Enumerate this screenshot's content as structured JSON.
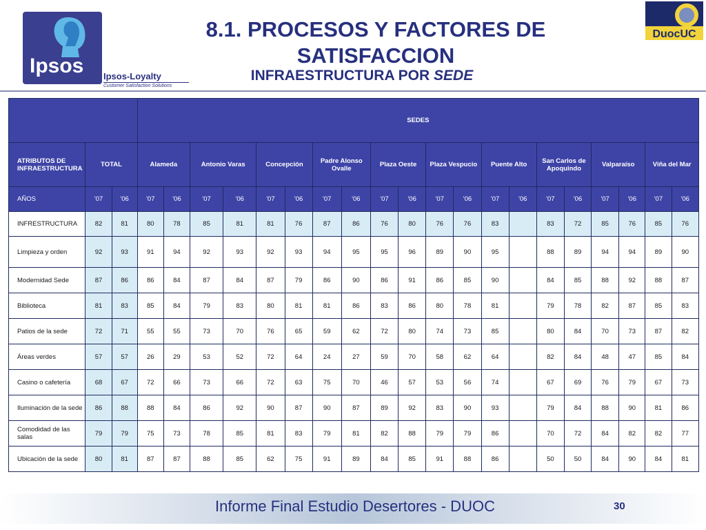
{
  "logo": {
    "word": "Ipsos",
    "loyalty": "Ipsos-Loyalty",
    "tagline": "Customer Satisfaction Solutions",
    "duoc": "DuocUC"
  },
  "title_line1": "8.1. PROCESOS Y FACTORES DE",
  "title_line2": "SATISFACCION",
  "subtitle_main": "INFRAESTRUCTURA POR ",
  "subtitle_italic": "SEDE",
  "table": {
    "sedes_label": "SEDES",
    "attr_header": "ATRIBUTOS DE INFRAESTRUCTURA",
    "years_label": "AÑOS",
    "columns": [
      "TOTAL",
      "Alameda",
      "Antonio Varas",
      "Concepción",
      "Padre Alonso Ovalle",
      "Plaza Oeste",
      "Plaza Vespucio",
      "Puente Alto",
      "San Carlos de Apoquindo",
      "Valparaíso",
      "Viña del Mar"
    ],
    "years": [
      "'07",
      "'06"
    ],
    "rows": [
      {
        "label": "INFRESTRUCTURA",
        "values": [
          "82",
          "81",
          "80",
          "78",
          "85",
          "81",
          "81",
          "76",
          "87",
          "86",
          "76",
          "80",
          "76",
          "76",
          "83",
          "",
          "83",
          "72",
          "85",
          "76",
          "85",
          "76"
        ]
      },
      {
        "label": "Limpieza y orden",
        "values": [
          "92",
          "93",
          "91",
          "94",
          "92",
          "93",
          "92",
          "93",
          "94",
          "95",
          "95",
          "96",
          "89",
          "90",
          "95",
          "",
          "88",
          "89",
          "94",
          "94",
          "89",
          "90"
        ]
      },
      {
        "label": "Modernidad Sede",
        "values": [
          "87",
          "86",
          "86",
          "84",
          "87",
          "84",
          "87",
          "79",
          "86",
          "90",
          "86",
          "91",
          "86",
          "85",
          "90",
          "",
          "84",
          "85",
          "88",
          "92",
          "88",
          "87"
        ]
      },
      {
        "label": "Biblioteca",
        "values": [
          "81",
          "83",
          "85",
          "84",
          "79",
          "83",
          "80",
          "81",
          "81",
          "86",
          "83",
          "86",
          "80",
          "78",
          "81",
          "",
          "79",
          "78",
          "82",
          "87",
          "85",
          "83"
        ]
      },
      {
        "label": "Patios de la sede",
        "values": [
          "72",
          "71",
          "55",
          "55",
          "73",
          "70",
          "76",
          "65",
          "59",
          "62",
          "72",
          "80",
          "74",
          "73",
          "85",
          "",
          "80",
          "84",
          "70",
          "73",
          "87",
          "82"
        ]
      },
      {
        "label": "Áreas verdes",
        "values": [
          "57",
          "57",
          "26",
          "29",
          "53",
          "52",
          "72",
          "64",
          "24",
          "27",
          "59",
          "70",
          "58",
          "62",
          "64",
          "",
          "82",
          "84",
          "48",
          "47",
          "85",
          "84"
        ]
      },
      {
        "label": "Casino o cafetería",
        "values": [
          "68",
          "67",
          "72",
          "66",
          "73",
          "66",
          "72",
          "63",
          "75",
          "70",
          "46",
          "57",
          "53",
          "56",
          "74",
          "",
          "67",
          "69",
          "76",
          "79",
          "67",
          "73"
        ]
      },
      {
        "label": "Iluminación de la sede",
        "values": [
          "86",
          "88",
          "88",
          "84",
          "86",
          "92",
          "90",
          "87",
          "90",
          "87",
          "89",
          "92",
          "83",
          "90",
          "93",
          "",
          "79",
          "84",
          "88",
          "90",
          "81",
          "86"
        ]
      },
      {
        "label": "Comodidad de las salas",
        "values": [
          "79",
          "79",
          "75",
          "73",
          "78",
          "85",
          "81",
          "83",
          "79",
          "81",
          "82",
          "88",
          "79",
          "79",
          "86",
          "",
          "70",
          "72",
          "84",
          "82",
          "82",
          "77"
        ]
      },
      {
        "label": "Ubicación de la sede",
        "values": [
          "80",
          "81",
          "87",
          "87",
          "88",
          "85",
          "62",
          "75",
          "91",
          "89",
          "84",
          "85",
          "91",
          "88",
          "86",
          "",
          "50",
          "50",
          "84",
          "90",
          "84",
          "81"
        ]
      }
    ]
  },
  "footer": {
    "text": "Informe Final Estudio Desertores - DUOC",
    "page": "30"
  },
  "colors": {
    "header_bg": "#3e44a6",
    "highlight": "#d8ecf6",
    "title": "#27307e"
  }
}
